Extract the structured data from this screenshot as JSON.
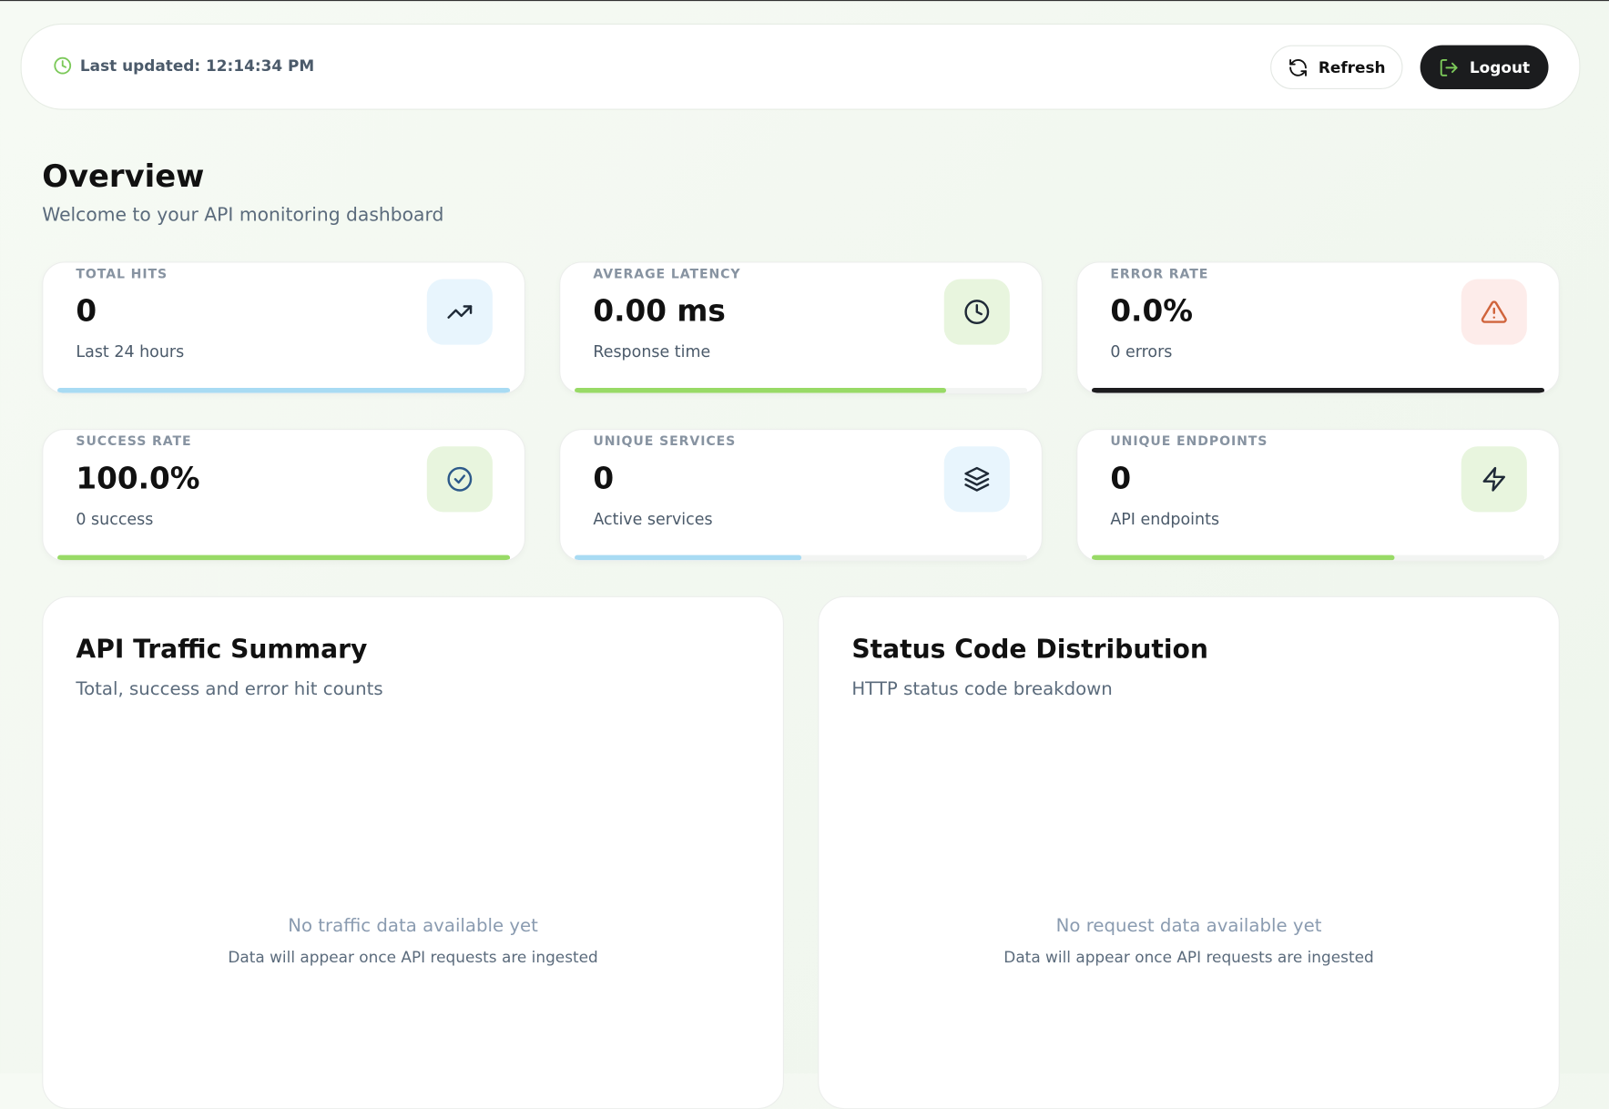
{
  "header": {
    "last_updated": "Last updated: 12:14:34 PM",
    "refresh": "Refresh",
    "logout": "Logout"
  },
  "overview": {
    "title": "Overview",
    "subtitle": "Welcome to your API monitoring dashboard"
  },
  "stats": [
    {
      "label": "TOTAL HITS",
      "value": "0",
      "caption": "Last 24 hours"
    },
    {
      "label": "AVERAGE LATENCY",
      "value": "0.00 ms",
      "caption": "Response time"
    },
    {
      "label": "ERROR RATE",
      "value": "0.0%",
      "caption": "0 errors"
    },
    {
      "label": "SUCCESS RATE",
      "value": "100.0%",
      "caption": "0 success"
    },
    {
      "label": "UNIQUE SERVICES",
      "value": "0",
      "caption": "Active services"
    },
    {
      "label": "UNIQUE ENDPOINTS",
      "value": "0",
      "caption": "API endpoints"
    }
  ],
  "panels": [
    {
      "title": "API Traffic Summary",
      "subtitle": "Total, success and error hit counts",
      "empty_title": "No traffic data available yet",
      "empty_text": "Data will appear once API requests are ingested"
    },
    {
      "title": "Status Code Distribution",
      "subtitle": "HTTP status code breakdown",
      "empty_title": "No request data available yet",
      "empty_text": "Data will appear once API requests are ingested"
    }
  ]
}
